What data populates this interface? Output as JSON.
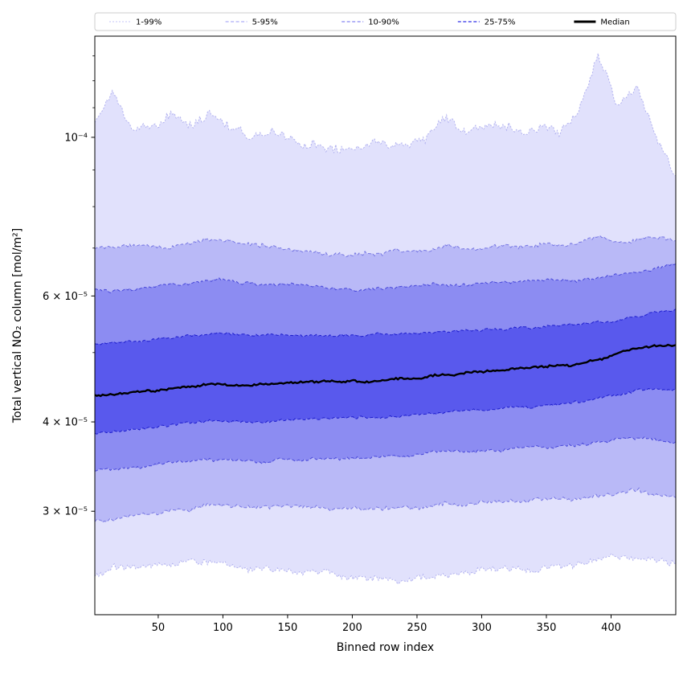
{
  "chart_data": {
    "type": "area",
    "subtype": "percentile-band-plot",
    "xlabel": "Binned row index",
    "ylabel": "Total vertical NO₂ column [mol/m²]",
    "y_scale": "log",
    "x_range": [
      1,
      450
    ],
    "y_range": [
      2.15e-05,
      0.0001385
    ],
    "x_ticks": [
      50,
      100,
      150,
      200,
      250,
      300,
      350,
      400
    ],
    "y_ticks_labeled": [
      {
        "value": 0.0001,
        "label": "10⁻⁴"
      },
      {
        "value": 6e-05,
        "label": "6 × 10⁻⁵"
      },
      {
        "value": 4e-05,
        "label": "4 × 10⁻⁵"
      },
      {
        "value": 3e-05,
        "label": "3 × 10⁻⁵"
      }
    ],
    "y_ticks_minor": [
      5e-05,
      7e-05,
      8e-05,
      9e-05,
      0.00011,
      0.00012,
      0.00013
    ],
    "colors": {
      "band": "#1a1ae6",
      "edge": "#1212c8",
      "median": "#000000",
      "frame": "#000000",
      "legend_border": "#cccccc"
    },
    "series": {
      "value_scale": 1e-05,
      "x_anchors": [
        1,
        15,
        30,
        45,
        60,
        75,
        90,
        105,
        120,
        135,
        150,
        165,
        180,
        195,
        210,
        225,
        240,
        255,
        270,
        285,
        300,
        315,
        330,
        345,
        360,
        375,
        390,
        405,
        420,
        435,
        450
      ],
      "percentiles": [
        {
          "name": "p1",
          "noise": 0.01,
          "values": [
            2.45,
            2.48,
            2.5,
            2.52,
            2.52,
            2.55,
            2.55,
            2.52,
            2.5,
            2.5,
            2.48,
            2.48,
            2.45,
            2.42,
            2.42,
            2.4,
            2.4,
            2.42,
            2.45,
            2.45,
            2.48,
            2.48,
            2.5,
            2.5,
            2.52,
            2.52,
            2.55,
            2.58,
            2.62,
            2.58,
            2.55
          ]
        },
        {
          "name": "p5",
          "noise": 0.006,
          "values": [
            2.9,
            2.92,
            2.95,
            2.97,
            3.0,
            3.02,
            3.05,
            3.05,
            3.02,
            3.03,
            3.03,
            3.04,
            3.04,
            3.02,
            3.02,
            3.03,
            3.04,
            3.05,
            3.06,
            3.07,
            3.08,
            3.09,
            3.1,
            3.11,
            3.12,
            3.12,
            3.14,
            3.18,
            3.22,
            3.18,
            3.15
          ]
        },
        {
          "name": "p10",
          "noise": 0.0045,
          "values": [
            3.4,
            3.42,
            3.45,
            3.47,
            3.5,
            3.52,
            3.55,
            3.53,
            3.52,
            3.54,
            3.54,
            3.55,
            3.55,
            3.55,
            3.56,
            3.57,
            3.58,
            3.6,
            3.62,
            3.63,
            3.65,
            3.66,
            3.68,
            3.7,
            3.71,
            3.72,
            3.75,
            3.78,
            3.8,
            3.78,
            3.76
          ]
        },
        {
          "name": "p25",
          "noise": 0.0035,
          "values": [
            3.85,
            3.87,
            3.9,
            3.93,
            3.96,
            3.98,
            4.02,
            4.0,
            4.0,
            4.02,
            4.02,
            4.03,
            4.04,
            4.04,
            4.05,
            4.06,
            4.08,
            4.1,
            4.12,
            4.14,
            4.16,
            4.18,
            4.2,
            4.22,
            4.24,
            4.26,
            4.3,
            4.36,
            4.42,
            4.44,
            4.45
          ]
        },
        {
          "name": "p50",
          "noise": 0.003,
          "values": [
            4.35,
            4.37,
            4.4,
            4.42,
            4.45,
            4.47,
            4.52,
            4.5,
            4.5,
            4.52,
            4.53,
            4.55,
            4.55,
            4.56,
            4.56,
            4.58,
            4.6,
            4.62,
            4.65,
            4.68,
            4.7,
            4.72,
            4.75,
            4.78,
            4.8,
            4.82,
            4.88,
            4.98,
            5.08,
            5.1,
            5.12
          ]
        },
        {
          "name": "p75",
          "noise": 0.0035,
          "values": [
            5.15,
            5.17,
            5.2,
            5.22,
            5.25,
            5.28,
            5.32,
            5.3,
            5.28,
            5.3,
            5.3,
            5.3,
            5.28,
            5.28,
            5.28,
            5.3,
            5.32,
            5.33,
            5.35,
            5.36,
            5.38,
            5.4,
            5.42,
            5.44,
            5.45,
            5.47,
            5.52,
            5.56,
            5.62,
            5.68,
            5.75
          ]
        },
        {
          "name": "p90",
          "noise": 0.0045,
          "values": [
            6.1,
            6.12,
            6.15,
            6.2,
            6.22,
            6.25,
            6.32,
            6.3,
            6.25,
            6.22,
            6.2,
            6.18,
            6.15,
            6.12,
            6.12,
            6.15,
            6.18,
            6.2,
            6.22,
            6.22,
            6.25,
            6.28,
            6.28,
            6.3,
            6.32,
            6.32,
            6.35,
            6.4,
            6.45,
            6.55,
            6.65
          ]
        },
        {
          "name": "p95",
          "noise": 0.006,
          "values": [
            7.0,
            7.02,
            7.05,
            7.0,
            7.05,
            7.1,
            7.2,
            7.15,
            7.1,
            7.05,
            7.0,
            6.95,
            6.9,
            6.85,
            6.85,
            6.88,
            6.9,
            6.95,
            7.05,
            7.0,
            7.0,
            7.05,
            7.05,
            7.08,
            7.1,
            7.1,
            7.25,
            7.15,
            7.2,
            7.25,
            7.2
          ]
        },
        {
          "name": "p99",
          "noise": 0.014,
          "values": [
            10.6,
            11.6,
            10.3,
            10.5,
            10.8,
            10.4,
            10.9,
            10.5,
            10.1,
            10.2,
            10.0,
            9.8,
            9.6,
            9.5,
            9.7,
            9.9,
            9.7,
            9.8,
            10.6,
            10.3,
            10.2,
            10.3,
            10.4,
            10.4,
            10.3,
            11.0,
            13.0,
            11.0,
            11.8,
            10.0,
            8.9
          ]
        }
      ]
    },
    "bands": [
      {
        "label": "1-99%",
        "lower": "p1",
        "upper": "p99",
        "fill_alpha": 0.13,
        "edge_alpha": 0.28,
        "dash": "2 2"
      },
      {
        "label": "5-95%",
        "lower": "p5",
        "upper": "p95",
        "fill_alpha": 0.2,
        "edge_alpha": 0.45,
        "dash": "4 2.5"
      },
      {
        "label": "10-90%",
        "lower": "p10",
        "upper": "p90",
        "fill_alpha": 0.28,
        "edge_alpha": 0.62,
        "dash": "4 2.5"
      },
      {
        "label": "25-75%",
        "lower": "p25",
        "upper": "p75",
        "fill_alpha": 0.45,
        "edge_alpha": 0.88,
        "dash": "4 2.5"
      }
    ],
    "median": {
      "series": "p50",
      "label": "Median",
      "color": "#000000",
      "width": 2.4
    },
    "legend": {
      "items": [
        {
          "label": "1-99%",
          "color": "#1a1ae6",
          "opacity": 0.25,
          "width": 1,
          "dash": "2 2"
        },
        {
          "label": "5-95%",
          "color": "#1a1ae6",
          "opacity": 0.45,
          "width": 1,
          "dash": "4 2.5"
        },
        {
          "label": "10-90%",
          "color": "#1a1ae6",
          "opacity": 0.65,
          "width": 1,
          "dash": "4 2.5"
        },
        {
          "label": "25-75%",
          "color": "#1a1ae6",
          "opacity": 0.9,
          "width": 1.2,
          "dash": "4 2.5"
        },
        {
          "label": "Median",
          "color": "#000000",
          "opacity": 1,
          "width": 3,
          "dash": ""
        }
      ]
    }
  }
}
